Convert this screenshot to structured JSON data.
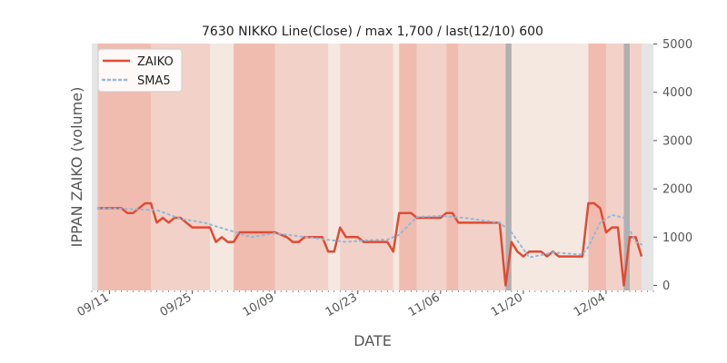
{
  "colors": {
    "zaiko": "#e24a33",
    "sma5": "#8eb9dc",
    "bg_base": "#e5e5e5",
    "band_pale": "#f4e8e0",
    "band_mid": "#f2d2c8",
    "band_dark": "#f0bcb0",
    "marker": "#b0b0b0"
  },
  "chart_data": {
    "type": "line",
    "title": "7630 NIKKO Line(Close) / max 1,700 / last(12/10) 600",
    "xlabel": "DATE",
    "ylabel": "IPPAN ZAIKO (volume)",
    "ylim": [
      0,
      5000
    ],
    "yticks": [
      "0",
      "1000",
      "2000",
      "3000",
      "4000",
      "5000"
    ],
    "ytick_values": [
      0,
      1000,
      2000,
      3000,
      4000,
      5000
    ],
    "xticks": [
      {
        "label": "09/11",
        "date": "2018-09-11"
      },
      {
        "label": "09/25",
        "date": "2018-09-25"
      },
      {
        "label": "10/09",
        "date": "2018-10-09"
      },
      {
        "label": "10/23",
        "date": "2018-10-23"
      },
      {
        "label": "11/06",
        "date": "2018-11-06"
      },
      {
        "label": "11/20",
        "date": "2018-11-20"
      },
      {
        "label": "12/04",
        "date": "2018-12-04"
      }
    ],
    "xlim": [
      "2018-09-08",
      "2018-12-12"
    ],
    "legend_position": "top-left",
    "grid": false,
    "series": [
      {
        "name": "ZAIKO",
        "style": "solid",
        "points": [
          [
            "2018-09-09",
            1600
          ],
          [
            "2018-09-13",
            1600
          ],
          [
            "2018-09-14",
            1500
          ],
          [
            "2018-09-15",
            1500
          ],
          [
            "2018-09-17",
            1700
          ],
          [
            "2018-09-18",
            1700
          ],
          [
            "2018-09-19",
            1300
          ],
          [
            "2018-09-20",
            1400
          ],
          [
            "2018-09-21",
            1300
          ],
          [
            "2018-09-22",
            1400
          ],
          [
            "2018-09-23",
            1400
          ],
          [
            "2018-09-25",
            1200
          ],
          [
            "2018-09-28",
            1200
          ],
          [
            "2018-09-29",
            900
          ],
          [
            "2018-09-30",
            1000
          ],
          [
            "2018-10-01",
            900
          ],
          [
            "2018-10-02",
            900
          ],
          [
            "2018-10-03",
            1100
          ],
          [
            "2018-10-09",
            1100
          ],
          [
            "2018-10-11",
            1000
          ],
          [
            "2018-10-12",
            900
          ],
          [
            "2018-10-13",
            900
          ],
          [
            "2018-10-14",
            1000
          ],
          [
            "2018-10-17",
            1000
          ],
          [
            "2018-10-18",
            700
          ],
          [
            "2018-10-19",
            700
          ],
          [
            "2018-10-20",
            1200
          ],
          [
            "2018-10-21",
            1000
          ],
          [
            "2018-10-23",
            1000
          ],
          [
            "2018-10-24",
            900
          ],
          [
            "2018-10-28",
            900
          ],
          [
            "2018-10-29",
            700
          ],
          [
            "2018-10-30",
            1500
          ],
          [
            "2018-11-01",
            1500
          ],
          [
            "2018-11-02",
            1400
          ],
          [
            "2018-11-06",
            1400
          ],
          [
            "2018-11-07",
            1500
          ],
          [
            "2018-11-08",
            1500
          ],
          [
            "2018-11-09",
            1300
          ],
          [
            "2018-11-16",
            1300
          ],
          [
            "2018-11-17",
            0
          ],
          [
            "2018-11-18",
            900
          ],
          [
            "2018-11-19",
            700
          ],
          [
            "2018-11-20",
            600
          ],
          [
            "2018-11-21",
            700
          ],
          [
            "2018-11-23",
            700
          ],
          [
            "2018-11-24",
            600
          ],
          [
            "2018-11-25",
            700
          ],
          [
            "2018-11-26",
            600
          ],
          [
            "2018-11-30",
            600
          ],
          [
            "2018-12-01",
            1700
          ],
          [
            "2018-12-02",
            1700
          ],
          [
            "2018-12-03",
            1600
          ],
          [
            "2018-12-04",
            1100
          ],
          [
            "2018-12-05",
            1200
          ],
          [
            "2018-12-06",
            1200
          ],
          [
            "2018-12-07",
            0
          ],
          [
            "2018-12-08",
            1000
          ],
          [
            "2018-12-09",
            1000
          ],
          [
            "2018-12-10",
            600
          ]
        ]
      },
      {
        "name": "SMA5",
        "style": "dotted",
        "points": [
          [
            "2018-09-09",
            1600
          ],
          [
            "2018-09-15",
            1580
          ],
          [
            "2018-09-19",
            1560
          ],
          [
            "2018-09-23",
            1380
          ],
          [
            "2018-09-27",
            1300
          ],
          [
            "2018-10-01",
            1150
          ],
          [
            "2018-10-05",
            1000
          ],
          [
            "2018-10-09",
            1080
          ],
          [
            "2018-10-13",
            1020
          ],
          [
            "2018-10-17",
            960
          ],
          [
            "2018-10-21",
            900
          ],
          [
            "2018-10-25",
            940
          ],
          [
            "2018-10-28",
            950
          ],
          [
            "2018-10-30",
            1050
          ],
          [
            "2018-11-02",
            1420
          ],
          [
            "2018-11-06",
            1440
          ],
          [
            "2018-11-10",
            1400
          ],
          [
            "2018-11-16",
            1300
          ],
          [
            "2018-11-18",
            1100
          ],
          [
            "2018-11-21",
            580
          ],
          [
            "2018-11-25",
            680
          ],
          [
            "2018-11-30",
            640
          ],
          [
            "2018-12-01",
            800
          ],
          [
            "2018-12-03",
            1300
          ],
          [
            "2018-12-05",
            1460
          ],
          [
            "2018-12-07",
            1400
          ],
          [
            "2018-12-09",
            900
          ],
          [
            "2018-12-10",
            850
          ]
        ]
      }
    ],
    "background_bands": [
      {
        "start": "2018-09-08",
        "end": "2018-09-09",
        "shade": "base"
      },
      {
        "start": "2018-09-09",
        "end": "2018-09-18",
        "shade": "dark"
      },
      {
        "start": "2018-09-18",
        "end": "2018-09-28",
        "shade": "mid"
      },
      {
        "start": "2018-09-28",
        "end": "2018-10-02",
        "shade": "pale"
      },
      {
        "start": "2018-10-02",
        "end": "2018-10-09",
        "shade": "dark"
      },
      {
        "start": "2018-10-09",
        "end": "2018-10-18",
        "shade": "mid"
      },
      {
        "start": "2018-10-18",
        "end": "2018-10-20",
        "shade": "pale"
      },
      {
        "start": "2018-10-20",
        "end": "2018-10-29",
        "shade": "mid"
      },
      {
        "start": "2018-10-29",
        "end": "2018-10-30",
        "shade": "pale"
      },
      {
        "start": "2018-10-30",
        "end": "2018-11-02",
        "shade": "dark"
      },
      {
        "start": "2018-11-02",
        "end": "2018-11-07",
        "shade": "mid"
      },
      {
        "start": "2018-11-07",
        "end": "2018-11-09",
        "shade": "dark"
      },
      {
        "start": "2018-11-09",
        "end": "2018-11-17",
        "shade": "mid"
      },
      {
        "start": "2018-11-17",
        "end": "2018-11-18",
        "shade": "marker"
      },
      {
        "start": "2018-11-18",
        "end": "2018-12-01",
        "shade": "pale"
      },
      {
        "start": "2018-12-01",
        "end": "2018-12-04",
        "shade": "dark"
      },
      {
        "start": "2018-12-04",
        "end": "2018-12-07",
        "shade": "mid"
      },
      {
        "start": "2018-12-07",
        "end": "2018-12-08",
        "shade": "marker"
      },
      {
        "start": "2018-12-08",
        "end": "2018-12-10",
        "shade": "mid"
      },
      {
        "start": "2018-12-10",
        "end": "2018-12-12",
        "shade": "base"
      }
    ]
  }
}
